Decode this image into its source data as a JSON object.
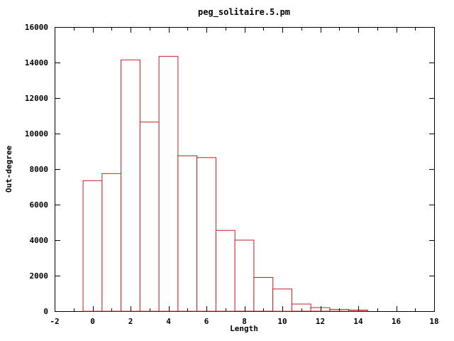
{
  "chart_data": {
    "type": "bar",
    "title": "peg_solitaire.5.pm",
    "xlabel": "Length",
    "ylabel": "Out-degree",
    "x": [
      0,
      1,
      2,
      3,
      4,
      5,
      6,
      7,
      8,
      9,
      10,
      11,
      12,
      13,
      14
    ],
    "values": [
      7350,
      7750,
      14150,
      10650,
      14350,
      8750,
      8650,
      4550,
      4000,
      1900,
      1250,
      400,
      200,
      100,
      60
    ],
    "bar_width": 1,
    "xlim": [
      -2,
      18
    ],
    "ylim": [
      0,
      16000
    ],
    "xticks": [
      -2,
      0,
      2,
      4,
      6,
      8,
      10,
      12,
      14,
      16,
      18
    ],
    "minor_xticks": [
      -1,
      1,
      3,
      5,
      7,
      9,
      11,
      13,
      15,
      17
    ],
    "yticks": [
      0,
      2000,
      4000,
      6000,
      8000,
      10000,
      12000,
      14000,
      16000
    ],
    "grid": false,
    "legend": "none",
    "colors": {
      "bar_stroke": "#c02020",
      "bar_fill": "#ffffff",
      "axis": "#000000",
      "text": "#000000",
      "background": "#ffffff"
    }
  }
}
